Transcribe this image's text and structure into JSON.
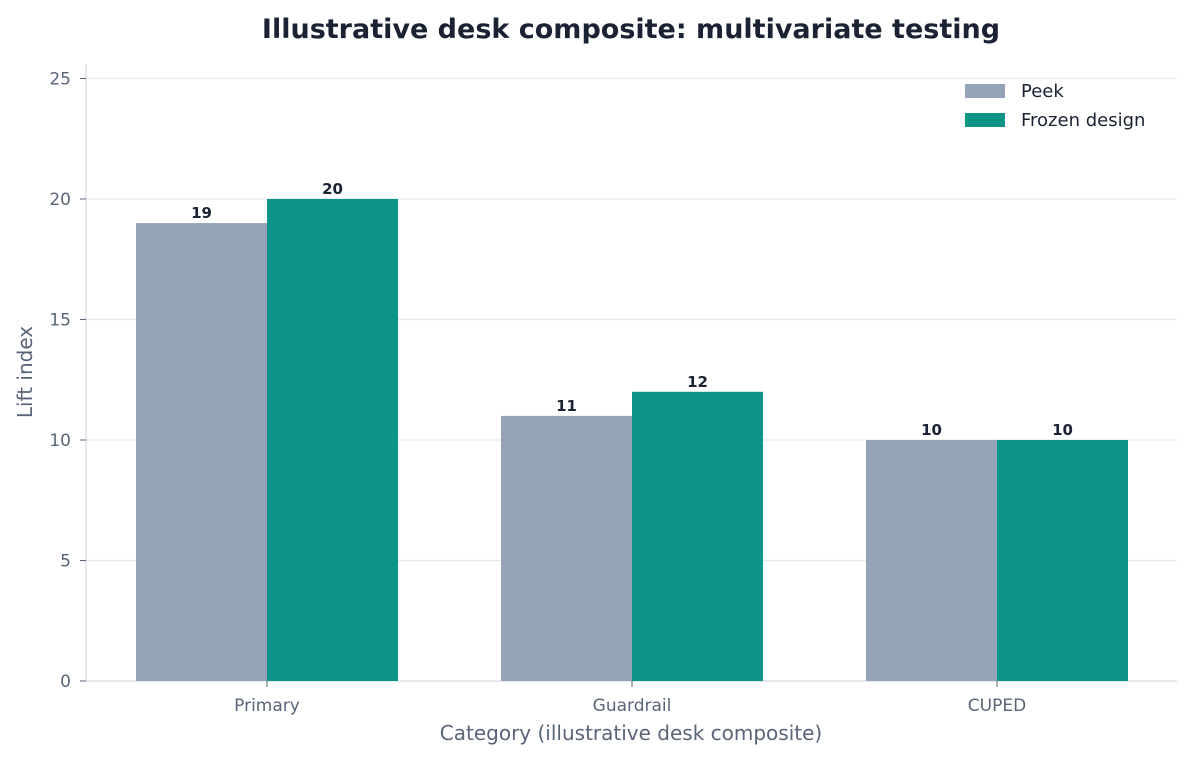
{
  "chart_data": {
    "type": "bar",
    "title": "Illustrative desk composite: multivariate testing",
    "xlabel": "Category (illustrative desk composite)",
    "ylabel": "Lift index",
    "categories": [
      "Primary",
      "Guardrail",
      "CUPED"
    ],
    "series": [
      {
        "name": "Peek",
        "values": [
          19,
          11,
          10
        ],
        "color": "#94a3b8"
      },
      {
        "name": "Frozen design",
        "values": [
          20,
          12,
          10
        ],
        "color": "#0d9488"
      }
    ],
    "ylim": [
      0,
      25.6
    ],
    "yticks": [
      0,
      5,
      10,
      15,
      20,
      25
    ],
    "grid": true,
    "legend_position": "top-right"
  }
}
